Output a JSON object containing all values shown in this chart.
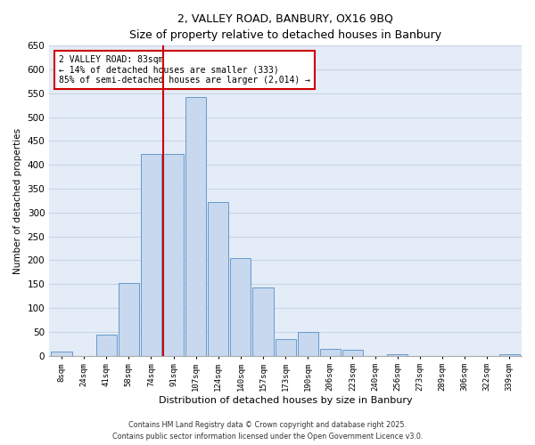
{
  "title": "2, VALLEY ROAD, BANBURY, OX16 9BQ",
  "subtitle": "Size of property relative to detached houses in Banbury",
  "xlabel": "Distribution of detached houses by size in Banbury",
  "ylabel": "Number of detached properties",
  "bar_labels": [
    "8sqm",
    "24sqm",
    "41sqm",
    "58sqm",
    "74sqm",
    "91sqm",
    "107sqm",
    "124sqm",
    "140sqm",
    "157sqm",
    "173sqm",
    "190sqm",
    "206sqm",
    "223sqm",
    "240sqm",
    "256sqm",
    "273sqm",
    "289sqm",
    "306sqm",
    "322sqm",
    "339sqm"
  ],
  "bar_values": [
    8,
    0,
    44,
    153,
    422,
    422,
    542,
    323,
    205,
    143,
    34,
    49,
    14,
    13,
    0,
    2,
    0,
    0,
    0,
    0,
    2
  ],
  "bar_color": "#c8d8ef",
  "bar_edge_color": "#6699cc",
  "grid_color": "#c8d4e8",
  "background_color": "#e4ecf7",
  "vline_x": 4.55,
  "vline_color": "#cc0000",
  "annotation_title": "2 VALLEY ROAD: 83sqm",
  "annotation_line1": "← 14% of detached houses are smaller (333)",
  "annotation_line2": "85% of semi-detached houses are larger (2,014) →",
  "annotation_box_color": "#cc0000",
  "ylim": [
    0,
    650
  ],
  "yticks": [
    0,
    50,
    100,
    150,
    200,
    250,
    300,
    350,
    400,
    450,
    500,
    550,
    600,
    650
  ],
  "footnote1": "Contains HM Land Registry data © Crown copyright and database right 2025.",
  "footnote2": "Contains public sector information licensed under the Open Government Licence v3.0."
}
